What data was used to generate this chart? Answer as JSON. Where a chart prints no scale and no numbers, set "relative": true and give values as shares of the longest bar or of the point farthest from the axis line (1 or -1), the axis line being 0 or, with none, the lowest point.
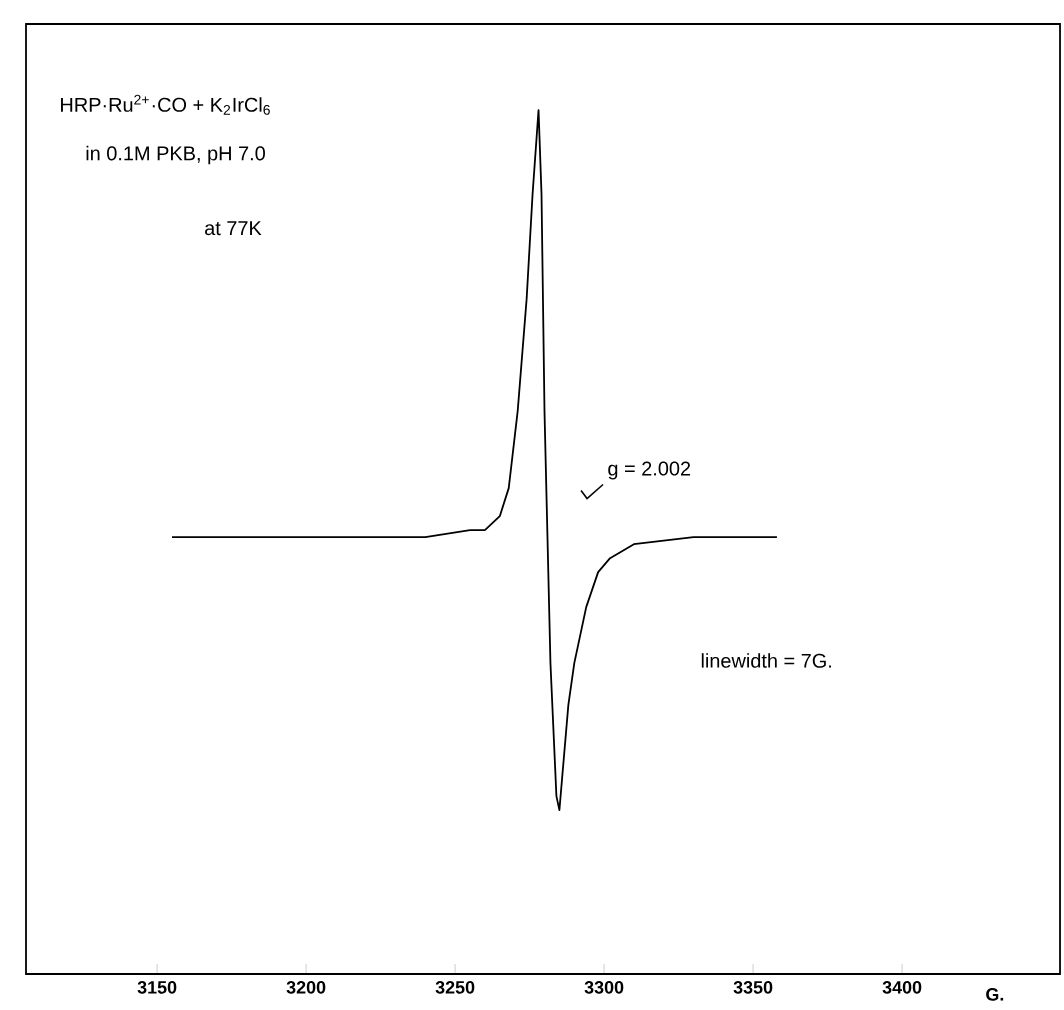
{
  "chart_data": {
    "type": "line",
    "relative": true,
    "color": "#000000",
    "xlabel": "G.",
    "x": [
      3155,
      3180,
      3200,
      3220,
      3240,
      3255,
      3260,
      3265,
      3268,
      3271,
      3274,
      3276,
      3278,
      3279,
      3280,
      3281,
      3282,
      3284,
      3285,
      3286,
      3288,
      3290,
      3294,
      3298,
      3302,
      3310,
      3330,
      3358
    ],
    "values": [
      0.39,
      0.39,
      0.39,
      0.39,
      0.39,
      0.4,
      0.4,
      0.42,
      0.46,
      0.57,
      0.73,
      0.88,
      1,
      0.88,
      0.57,
      0.39,
      0.21,
      0.02,
      0,
      0.05,
      0.15,
      0.21,
      0.29,
      0.34,
      0.36,
      0.38,
      0.39,
      0.39
    ],
    "xlim": [
      3106,
      3453
    ],
    "xticks": [
      3150,
      3200,
      3250,
      3300,
      3350,
      3400
    ],
    "tick_labels": "x",
    "annotations": [
      "HRP·Ru$^{2+}$·CO + K$_{2}$IrCl$_{6}$",
      "in 0.1M PKB, pH 7.0",
      "at 77K",
      "g = 2.002",
      "linewidth = 7G."
    ]
  }
}
